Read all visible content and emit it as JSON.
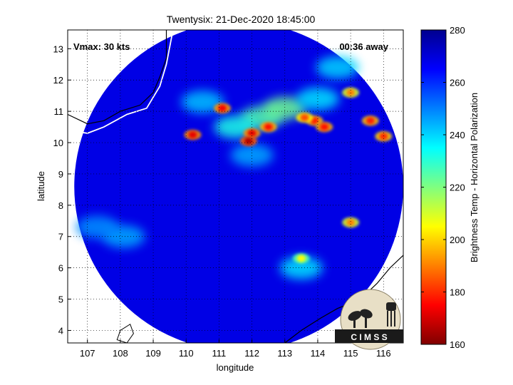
{
  "chart_data": {
    "type": "heatmap",
    "title": "Twentysix: 21-Dec-2020 18:45:00",
    "xlabel": "longitude",
    "ylabel": "latitude",
    "xlim": [
      106.4,
      116.6
    ],
    "ylim": [
      3.6,
      13.6
    ],
    "xticks": [
      "107",
      "108",
      "109",
      "110",
      "111",
      "112",
      "113",
      "114",
      "115",
      "116"
    ],
    "yticks": [
      "4",
      "5",
      "6",
      "7",
      "8",
      "9",
      "10",
      "11",
      "12",
      "13"
    ],
    "grid": true,
    "annotations": {
      "vmax": "Vmax: 30 kts",
      "time_away": "00:36 away"
    },
    "colorbar": {
      "label": "Brightness Temp - Horizontal Polarization",
      "range": [
        160,
        280
      ],
      "ticks": [
        "280",
        "260",
        "240",
        "220",
        "200",
        "180",
        "160"
      ],
      "colormap": "jet",
      "placement": "right"
    },
    "swath": {
      "center_lon": 111.6,
      "center_lat": 8.6,
      "radius_deg": 5.0
    },
    "background_value": 268,
    "cold_features": [
      {
        "lon": 112.0,
        "lat": 10.3,
        "value": 172
      },
      {
        "lon": 111.9,
        "lat": 10.05,
        "value": 166
      },
      {
        "lon": 112.5,
        "lat": 10.5,
        "value": 176
      },
      {
        "lon": 111.1,
        "lat": 11.1,
        "value": 174
      },
      {
        "lon": 110.2,
        "lat": 10.25,
        "value": 172
      },
      {
        "lon": 113.9,
        "lat": 10.7,
        "value": 178
      },
      {
        "lon": 114.2,
        "lat": 10.5,
        "value": 176
      },
      {
        "lon": 113.6,
        "lat": 10.8,
        "value": 184
      },
      {
        "lon": 115.6,
        "lat": 10.7,
        "value": 178
      },
      {
        "lon": 116.0,
        "lat": 10.2,
        "value": 180
      },
      {
        "lon": 115.0,
        "lat": 11.6,
        "value": 190
      },
      {
        "lon": 115.0,
        "lat": 7.45,
        "value": 190
      },
      {
        "lon": 113.5,
        "lat": 6.3,
        "value": 205
      }
    ],
    "warm_anvil_features": [
      {
        "lon": 112.3,
        "lat": 10.8,
        "value": 225
      },
      {
        "lon": 113.0,
        "lat": 11.1,
        "value": 222
      },
      {
        "lon": 111.5,
        "lat": 10.5,
        "value": 232
      },
      {
        "lon": 114.0,
        "lat": 11.4,
        "value": 238
      },
      {
        "lon": 110.5,
        "lat": 11.3,
        "value": 242
      },
      {
        "lon": 114.6,
        "lat": 12.4,
        "value": 240
      },
      {
        "lon": 113.5,
        "lat": 6.0,
        "value": 238
      },
      {
        "lon": 108.1,
        "lat": 7.0,
        "value": 245
      },
      {
        "lon": 107.3,
        "lat": 7.3,
        "value": 248
      },
      {
        "lon": 112.0,
        "lat": 9.6,
        "value": 245
      }
    ]
  },
  "logo": {
    "text": "C I M S S"
  },
  "colors": {
    "coast": "#ffffff",
    "frame": "#000000",
    "land": "#ffffff"
  }
}
